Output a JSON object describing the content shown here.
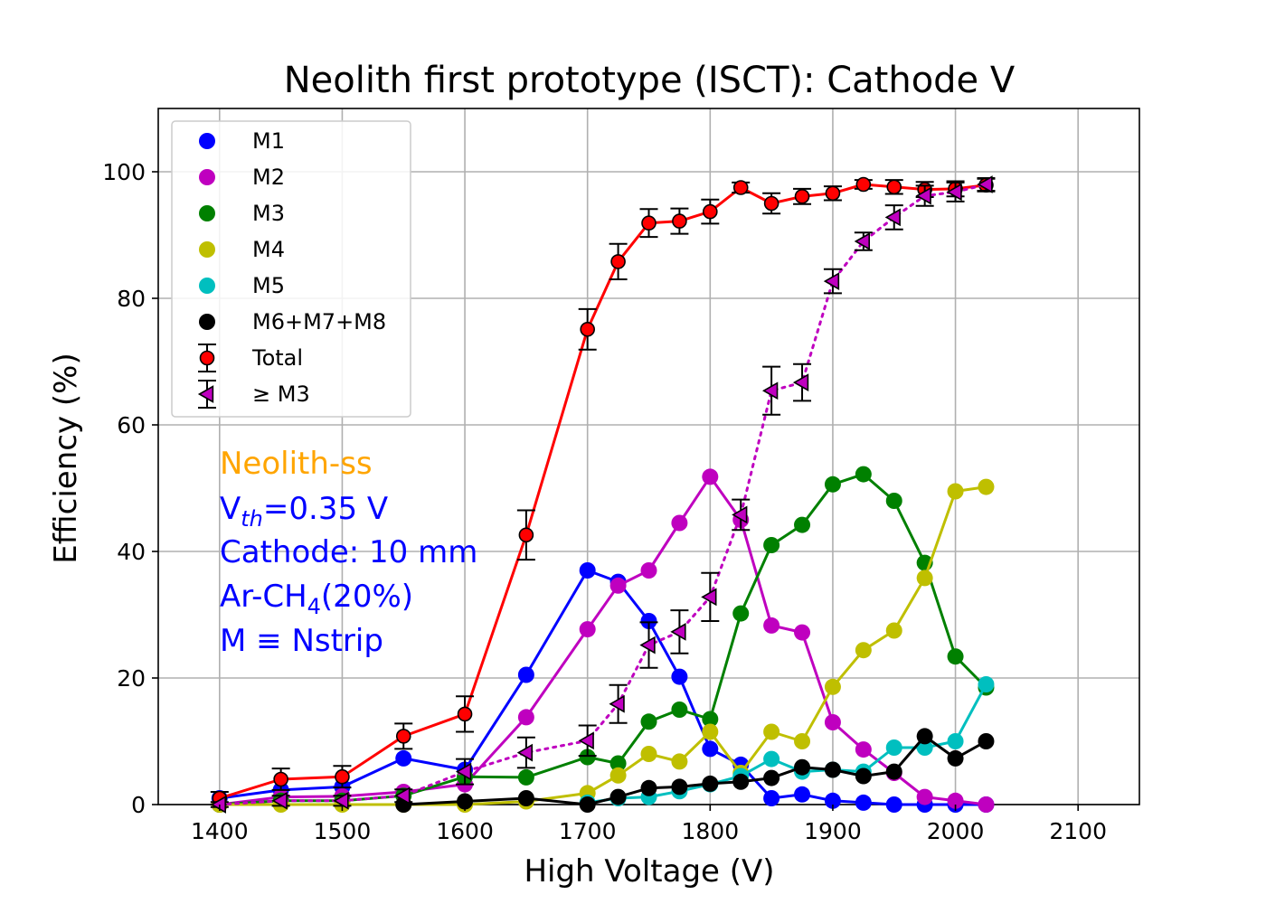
{
  "chart_data": {
    "type": "line",
    "title": "Neolith first prototype (ISCT): Cathode V",
    "xlabel": "High Voltage (V)",
    "ylabel": "Efficiency (%)",
    "xlim": [
      1350,
      2150
    ],
    "ylim": [
      0,
      110
    ],
    "xticks": [
      1400,
      1500,
      1600,
      1700,
      1800,
      1900,
      2000,
      2100
    ],
    "yticks": [
      0,
      20,
      40,
      60,
      80,
      100
    ],
    "grid": true,
    "legend_position": "top-left",
    "annotations": {
      "gas_label": "Neolith-ss",
      "vth_base": "V",
      "vth_sub": "th",
      "vth_value": "=0.35 V",
      "cathode": "Cathode: 10 mm",
      "ar_base": "Ar-CH",
      "ar_sub": "4",
      "ar_rest": "(20%)",
      "m_def": "M ≡ Nstrip"
    },
    "annotation_colors": {
      "gas_label": "#ffa500",
      "text": "#0000ff"
    },
    "series": [
      {
        "name": "M1",
        "color": "#0000ff",
        "marker": "circle",
        "line": "solid",
        "x": [
          1400,
          1450,
          1500,
          1550,
          1600,
          1650,
          1700,
          1725,
          1750,
          1775,
          1800,
          1825,
          1850,
          1875,
          1900,
          1925,
          1950,
          1975,
          2000,
          2025
        ],
        "y": [
          1.0,
          2.3,
          2.8,
          7.3,
          5.5,
          20.5,
          37.0,
          35.2,
          29.0,
          20.2,
          8.8,
          6.3,
          1.0,
          1.6,
          0.6,
          0.3,
          0.0,
          0.0,
          0.0,
          0.0
        ]
      },
      {
        "name": "M2",
        "color": "#bf00bf",
        "marker": "circle",
        "line": "solid",
        "x": [
          1400,
          1450,
          1500,
          1550,
          1600,
          1650,
          1700,
          1725,
          1750,
          1775,
          1800,
          1825,
          1850,
          1875,
          1900,
          1925,
          1950,
          1975,
          2000,
          2025
        ],
        "y": [
          0.0,
          1.2,
          1.3,
          2.0,
          3.2,
          13.8,
          27.7,
          34.6,
          37.0,
          44.5,
          51.8,
          45.0,
          28.3,
          27.2,
          13.0,
          8.7,
          5.0,
          1.2,
          0.6,
          0.0
        ]
      },
      {
        "name": "M3",
        "color": "#008000",
        "marker": "circle",
        "line": "solid",
        "x": [
          1400,
          1450,
          1500,
          1550,
          1600,
          1650,
          1700,
          1725,
          1750,
          1775,
          1800,
          1825,
          1850,
          1875,
          1900,
          1925,
          1950,
          1975,
          2000,
          2025
        ],
        "y": [
          0.0,
          0.6,
          0.6,
          1.4,
          4.4,
          4.3,
          7.5,
          6.5,
          13.1,
          15.0,
          13.5,
          30.2,
          41.0,
          44.2,
          50.6,
          52.2,
          48.0,
          38.2,
          23.4,
          18.5
        ]
      },
      {
        "name": "M4",
        "color": "#bfbf00",
        "marker": "circle",
        "line": "solid",
        "x": [
          1400,
          1450,
          1500,
          1550,
          1600,
          1650,
          1700,
          1725,
          1750,
          1775,
          1800,
          1825,
          1850,
          1875,
          1900,
          1925,
          1950,
          1975,
          2000,
          2025
        ],
        "y": [
          0.0,
          0.0,
          0.0,
          0.0,
          0.0,
          0.5,
          1.8,
          4.6,
          8.0,
          6.8,
          11.5,
          5.0,
          11.5,
          10.0,
          18.6,
          24.4,
          27.5,
          35.8,
          49.5,
          50.2
        ]
      },
      {
        "name": "M5",
        "color": "#00bfbf",
        "marker": "circle",
        "line": "solid",
        "x": [
          1700,
          1725,
          1750,
          1775,
          1800,
          1825,
          1850,
          1875,
          1900,
          1925,
          1950,
          1975,
          2000,
          2025
        ],
        "y": [
          0.3,
          1.0,
          1.2,
          2.1,
          3.2,
          4.5,
          7.2,
          5.2,
          5.5,
          5.2,
          9.0,
          9.0,
          10.0,
          19.0
        ]
      },
      {
        "name": "M6+M7+M8",
        "color": "#000000",
        "marker": "circle",
        "line": "solid",
        "x": [
          1550,
          1600,
          1650,
          1700,
          1725,
          1750,
          1775,
          1800,
          1825,
          1850,
          1875,
          1900,
          1925,
          1950,
          1975,
          2000,
          2025
        ],
        "y": [
          0.0,
          0.5,
          1.0,
          0.0,
          1.2,
          2.6,
          2.8,
          3.3,
          3.6,
          4.2,
          5.9,
          5.5,
          4.5,
          5.2,
          10.8,
          7.3,
          10.0
        ]
      },
      {
        "name": "Total",
        "color": "#ff0000",
        "marker": "circle-errorbar",
        "line": "solid",
        "x": [
          1400,
          1450,
          1500,
          1550,
          1600,
          1650,
          1700,
          1725,
          1750,
          1775,
          1800,
          1825,
          1850,
          1875,
          1900,
          1925,
          1950,
          1975,
          2000,
          2025
        ],
        "y": [
          1.0,
          4.0,
          4.4,
          10.8,
          14.3,
          42.6,
          75.1,
          85.8,
          91.9,
          92.2,
          93.7,
          97.5,
          95.0,
          96.1,
          96.6,
          98.0,
          97.6,
          97.2,
          97.3,
          97.9
        ],
        "err": [
          1.0,
          1.7,
          1.7,
          2.0,
          2.8,
          3.9,
          3.2,
          2.8,
          2.2,
          2.0,
          1.9,
          0.8,
          1.6,
          1.2,
          1.1,
          0.7,
          1.1,
          1.2,
          1.2,
          1.0
        ]
      },
      {
        "name": "≥ M3",
        "color": "#bf00bf",
        "marker": "triangle-left-errorbar",
        "line": "dotted",
        "x": [
          1400,
          1450,
          1500,
          1550,
          1600,
          1650,
          1700,
          1725,
          1750,
          1775,
          1800,
          1825,
          1850,
          1875,
          1900,
          1925,
          1950,
          1975,
          2000,
          2025
        ],
        "y": [
          0.0,
          0.6,
          0.6,
          1.4,
          5.2,
          8.2,
          10.1,
          15.9,
          25.2,
          27.3,
          32.8,
          45.8,
          65.4,
          66.7,
          82.7,
          89.0,
          92.8,
          96.2,
          96.8,
          98.0
        ],
        "err": [
          0.4,
          0.8,
          0.8,
          1.0,
          2.0,
          2.4,
          2.4,
          3.0,
          3.6,
          3.4,
          3.8,
          2.4,
          3.8,
          2.9,
          1.9,
          1.4,
          1.9,
          1.6,
          1.5,
          1.0
        ]
      }
    ]
  }
}
